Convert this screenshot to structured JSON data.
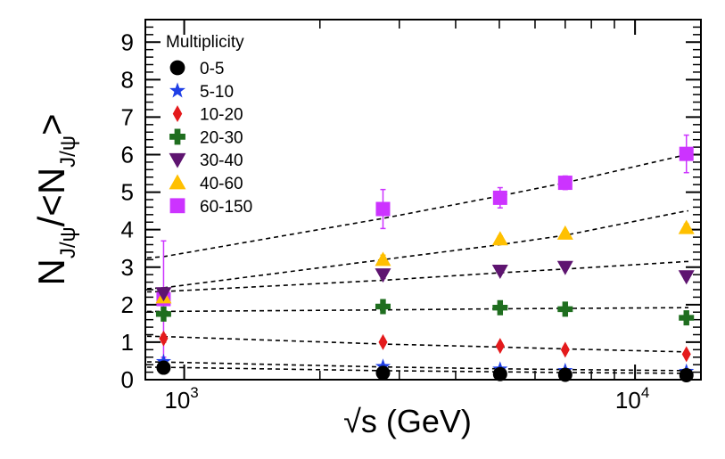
{
  "chart_data": {
    "type": "scatter",
    "xscale": "log",
    "xlim": [
      820,
      14000
    ],
    "ylim": [
      0,
      9.6
    ],
    "xlabel": "√s (GeV)",
    "xlabel_parts": {
      "radical": "√",
      "rest": "s (GeV)"
    },
    "ylabel": "N_{J/ψ}/<N_{J/ψ}>",
    "ylabel_parts": {
      "n1": "N",
      "sub1": "J/ψ",
      "slash": "/<",
      "n2": "N",
      "sub2": "J/ψ",
      "close": ">"
    },
    "y_ticks": [
      0,
      1,
      2,
      3,
      4,
      5,
      6,
      7,
      8,
      9
    ],
    "x_major_ticks": [
      1000,
      10000
    ],
    "x_minor_ticks": [
      2000,
      3000,
      4000,
      5000,
      6000,
      7000,
      8000,
      9000
    ],
    "x_tick_labels": [
      {
        "value": 1000,
        "base": "10",
        "exp": "3"
      },
      {
        "value": 10000,
        "base": "10",
        "exp": "4"
      }
    ],
    "legend": {
      "title": "Multiplicity",
      "position": "top-left"
    },
    "x": [
      900,
      2760,
      5020,
      7000,
      13000
    ],
    "series": [
      {
        "name": "0-5",
        "marker": "circle",
        "color": "#000000",
        "values": [
          0.32,
          0.18,
          0.15,
          0.13,
          0.12
        ],
        "errors": [
          0.05,
          0.03,
          0.02,
          0.02,
          0.02
        ],
        "fit": [
          0.33,
          0.24,
          0.21,
          0.19,
          0.17
        ]
      },
      {
        "name": "5-10",
        "marker": "star",
        "color": "#1f3fe6",
        "values": [
          0.48,
          0.35,
          0.28,
          0.24,
          0.22
        ],
        "errors": [
          0.05,
          0.03,
          0.03,
          0.02,
          0.02
        ],
        "fit": [
          0.47,
          0.34,
          0.29,
          0.27,
          0.24
        ]
      },
      {
        "name": "10-20",
        "marker": "diamond",
        "color": "#e41a1c",
        "values": [
          1.1,
          1.0,
          0.9,
          0.8,
          0.68
        ],
        "errors": [
          0.1,
          0.08,
          0.06,
          0.05,
          0.05
        ],
        "fit": [
          1.15,
          0.95,
          0.87,
          0.82,
          0.74
        ]
      },
      {
        "name": "20-30",
        "marker": "cross",
        "color": "#1f6e1f",
        "values": [
          1.75,
          1.95,
          1.92,
          1.88,
          1.65
        ],
        "errors": [
          0.1,
          0.08,
          0.06,
          0.05,
          0.06
        ],
        "fit": [
          1.82,
          1.86,
          1.89,
          1.9,
          1.92
        ]
      },
      {
        "name": "30-40",
        "marker": "triangle-down",
        "color": "#5e1470",
        "values": [
          2.3,
          2.8,
          2.9,
          3.0,
          2.75
        ],
        "errors": [
          0.15,
          0.1,
          0.07,
          0.06,
          0.08
        ],
        "fit": [
          2.35,
          2.65,
          2.85,
          2.95,
          3.15
        ]
      },
      {
        "name": "40-60",
        "marker": "triangle-up",
        "color": "#ffc000",
        "values": [
          2.2,
          3.2,
          3.75,
          3.9,
          4.05
        ],
        "errors": [
          0.2,
          0.12,
          0.08,
          0.07,
          0.1
        ],
        "fit": [
          2.45,
          3.2,
          3.6,
          3.85,
          4.5
        ]
      },
      {
        "name": "60-150",
        "marker": "square",
        "color": "#cc33ff",
        "values": [
          2.15,
          4.55,
          4.85,
          5.25,
          6.02
        ],
        "errors": [
          1.55,
          0.52,
          0.27,
          0.18,
          0.5
        ],
        "fit": [
          3.28,
          4.3,
          4.9,
          5.25,
          6.0
        ]
      }
    ]
  }
}
